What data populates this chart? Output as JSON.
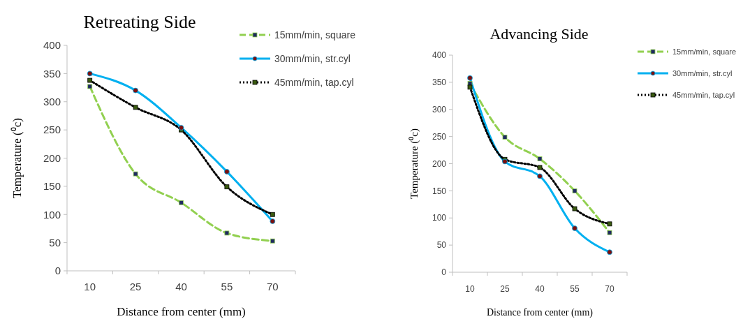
{
  "chart_data": [
    {
      "type": "line",
      "title": "Retreating Side",
      "xlabel": "Distance  from center (mm)",
      "ylabel": "Temperature (⁰c)",
      "categories": [
        "10",
        "25",
        "40",
        "55",
        "70"
      ],
      "ylim": [
        0,
        400
      ],
      "yticks": [
        0,
        50,
        100,
        150,
        200,
        250,
        300,
        350,
        400
      ],
      "grid": false,
      "legend": "right",
      "series": [
        {
          "name": "15mm/min, square",
          "color": "#92d050",
          "line_style": "dashed",
          "marker": "square",
          "values": [
            327,
            172,
            121,
            67,
            53
          ]
        },
        {
          "name": "30mm/min, str.cyl",
          "color": "#00b0f0",
          "line_style": "solid",
          "marker": "circle",
          "values": [
            350,
            320,
            254,
            176,
            88
          ]
        },
        {
          "name": "45mm/min, tap.cyl",
          "color": "#000000",
          "line_style": "dotted",
          "marker": "square",
          "values": [
            338,
            290,
            250,
            149,
            100
          ]
        }
      ]
    },
    {
      "type": "line",
      "title": "Advancing Side",
      "xlabel": "Distance from center (mm)",
      "ylabel": "Temperature (⁰c)",
      "categories": [
        "10",
        "25",
        "40",
        "55",
        "70"
      ],
      "ylim": [
        0,
        400
      ],
      "yticks": [
        0,
        50,
        100,
        150,
        200,
        250,
        300,
        350,
        400
      ],
      "grid": false,
      "legend": "right",
      "series": [
        {
          "name": "15mm/min, square",
          "color": "#92d050",
          "line_style": "dashed",
          "marker": "square",
          "values": [
            348,
            249,
            209,
            150,
            73
          ]
        },
        {
          "name": "30mm/min, str.cyl",
          "color": "#00b0f0",
          "line_style": "solid",
          "marker": "circle",
          "values": [
            358,
            204,
            177,
            81,
            37
          ]
        },
        {
          "name": "45mm/min, tap.cyl",
          "color": "#000000",
          "line_style": "dotted",
          "marker": "square",
          "values": [
            341,
            208,
            193,
            117,
            89
          ]
        }
      ]
    }
  ]
}
